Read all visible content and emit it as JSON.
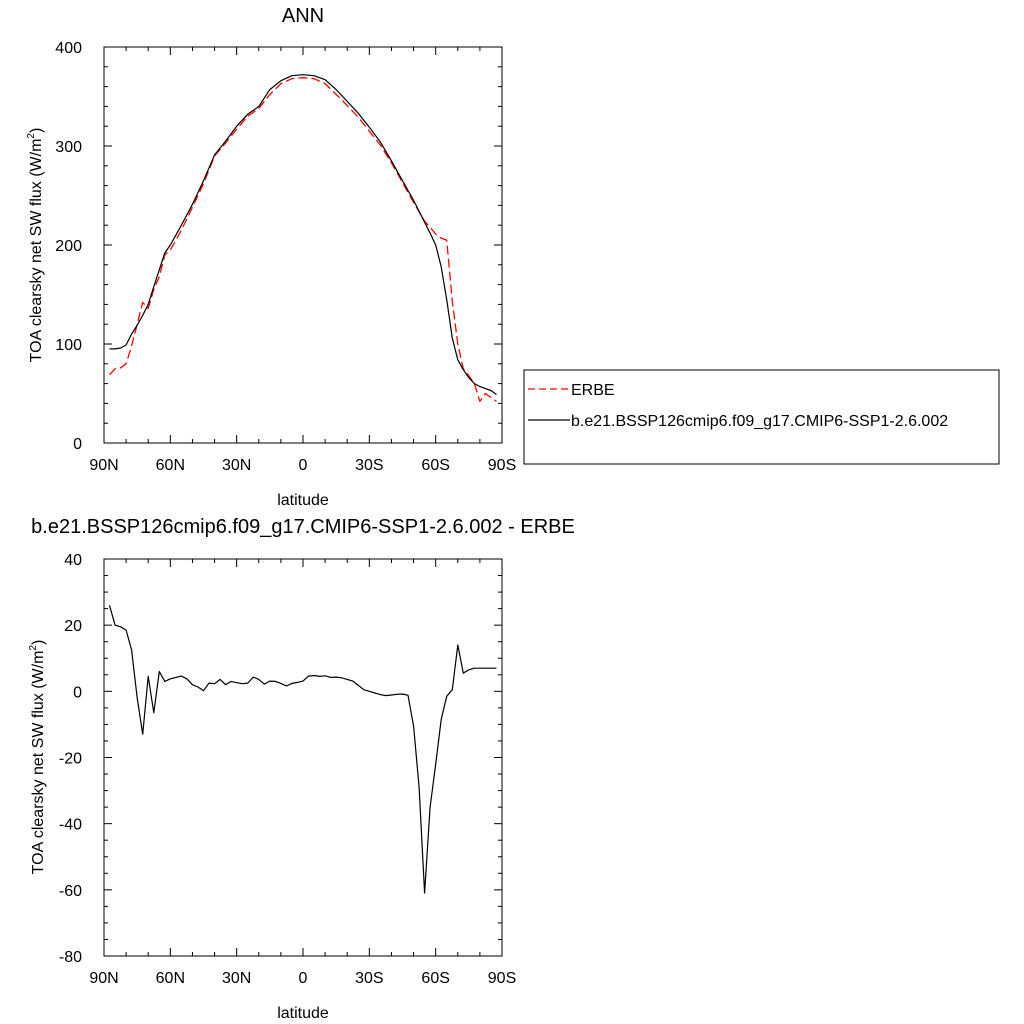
{
  "chart_data": [
    {
      "type": "line",
      "title": "ANN",
      "xlabel": "latitude",
      "ylabel": "TOA clearsky net SW flux (W/m",
      "ylabel_sup": "2",
      "ylabel_close": ")",
      "xlim": [
        90,
        -90
      ],
      "ylim": [
        0,
        400
      ],
      "x_ticks": [
        {
          "value": 90,
          "label": "90N"
        },
        {
          "value": 60,
          "label": "60N"
        },
        {
          "value": 30,
          "label": "30N"
        },
        {
          "value": 0,
          "label": "0"
        },
        {
          "value": -30,
          "label": "30S"
        },
        {
          "value": -60,
          "label": "60S"
        },
        {
          "value": -90,
          "label": "90S"
        }
      ],
      "y_ticks": [
        0,
        100,
        200,
        300,
        400
      ],
      "legend_position": "right",
      "series": [
        {
          "name": "ERBE",
          "style": "dashed",
          "color": "#ff0000",
          "x": [
            87.5,
            85,
            82.5,
            80,
            77.5,
            75,
            72.5,
            70,
            67.5,
            65,
            62.5,
            60,
            57.5,
            55,
            50,
            45,
            40,
            35,
            30,
            25,
            20,
            15,
            10,
            5,
            0,
            -5,
            -10,
            -15,
            -20,
            -25,
            -30,
            -35,
            -40,
            -45,
            -50,
            -55,
            -57.5,
            -60,
            -62.5,
            -65,
            -67.5,
            -70,
            -72.5,
            -75,
            -77.5,
            -80,
            -82.5,
            -85,
            -87.5
          ],
          "y": [
            69,
            75,
            76,
            80,
            98,
            120,
            142,
            136,
            155,
            168,
            190,
            195,
            205,
            215,
            238,
            262,
            290,
            303,
            317,
            330,
            338,
            352,
            363,
            368,
            369,
            368,
            363,
            352,
            341,
            329,
            315,
            301,
            283,
            263,
            243,
            224,
            218,
            211,
            207,
            205,
            143,
            100,
            75,
            68,
            60,
            42,
            50,
            46,
            42
          ]
        },
        {
          "name": "b.e21.BSSP126cmip6.f09_g17.CMIP6-SSP1-2.6.002",
          "style": "solid",
          "color": "#000000",
          "x": [
            87.5,
            85,
            82.5,
            80,
            77.5,
            75,
            72.5,
            70,
            67.5,
            65,
            62.5,
            60,
            57.5,
            55,
            50,
            45,
            40,
            35,
            30,
            25,
            20,
            15,
            10,
            5,
            0,
            -5,
            -10,
            -15,
            -20,
            -25,
            -30,
            -35,
            -40,
            -45,
            -50,
            -55,
            -57.5,
            -60,
            -62.5,
            -65,
            -67.5,
            -70,
            -72.5,
            -75,
            -77.5,
            -80,
            -82.5,
            -85,
            -87.5
          ],
          "y": [
            95,
            95,
            96,
            99,
            110,
            119,
            129,
            140,
            158,
            175,
            192,
            200,
            210,
            220,
            241,
            265,
            291,
            305,
            320,
            332,
            340,
            357,
            366,
            371,
            372,
            371,
            367,
            357,
            345,
            333,
            319,
            304,
            285,
            265,
            245,
            223,
            212,
            200,
            178,
            145,
            106,
            84,
            74,
            66,
            60,
            57,
            55,
            53,
            49
          ]
        }
      ]
    },
    {
      "type": "line",
      "title": "b.e21.BSSP126cmip6.f09_g17.CMIP6-SSP1-2.6.002 - ERBE",
      "xlabel": "latitude",
      "ylabel": "TOA clearsky net SW flux (W/m",
      "ylabel_sup": "2",
      "ylabel_close": ")",
      "xlim": [
        90,
        -90
      ],
      "ylim": [
        -80,
        40
      ],
      "x_ticks": [
        {
          "value": 90,
          "label": "90N"
        },
        {
          "value": 60,
          "label": "60N"
        },
        {
          "value": 30,
          "label": "30N"
        },
        {
          "value": 0,
          "label": "0"
        },
        {
          "value": -30,
          "label": "30S"
        },
        {
          "value": -60,
          "label": "60S"
        },
        {
          "value": -90,
          "label": "90S"
        }
      ],
      "y_ticks": [
        -80,
        -60,
        -40,
        -20,
        0,
        20,
        40
      ],
      "series": [
        {
          "style": "solid",
          "color": "#000000",
          "x": [
            87.5,
            85,
            82.5,
            80,
            77.5,
            75,
            72.5,
            70,
            67.5,
            65,
            62.5,
            60,
            57.5,
            55,
            52.5,
            50,
            47.5,
            45,
            42.5,
            40,
            37.5,
            35,
            32.5,
            30,
            27.5,
            25,
            22.5,
            20,
            17.5,
            15,
            12.5,
            10,
            7.5,
            5,
            2.5,
            0,
            -2.5,
            -5,
            -7.5,
            -10,
            -12.5,
            -15,
            -17.5,
            -20,
            -22.5,
            -25,
            -27.5,
            -30,
            -32.5,
            -35,
            -37.5,
            -40,
            -42.5,
            -45,
            -47.5,
            -50,
            -52.5,
            -55,
            -57.5,
            -60,
            -62.5,
            -65,
            -67.5,
            -70,
            -72.5,
            -75,
            -77.5,
            -80,
            -82.5,
            -85,
            -87.5
          ],
          "y": [
            26,
            20,
            19.5,
            18.5,
            12.5,
            -2,
            -13,
            4.5,
            -6.5,
            6,
            3,
            3.8,
            4.2,
            4.6,
            3.8,
            2,
            1.3,
            0.2,
            2.5,
            2.3,
            3.6,
            2,
            3,
            2.6,
            2.3,
            2.5,
            4.3,
            3.6,
            2.2,
            3.1,
            3,
            2.4,
            1.6,
            2.4,
            2.7,
            3.1,
            4.6,
            4.8,
            4.5,
            4.7,
            4.2,
            4.3,
            4.1,
            3.6,
            3.1,
            1.8,
            0.5,
            0,
            -0.5,
            -1,
            -1.3,
            -1.1,
            -0.9,
            -0.8,
            -1.2,
            -10.5,
            -29,
            -61,
            -35,
            -22,
            -8.5,
            -1.5,
            0.5,
            14,
            5.5,
            6.5,
            7,
            7,
            7,
            7,
            7
          ]
        }
      ]
    }
  ],
  "legend": {
    "items": [
      {
        "label": "ERBE"
      },
      {
        "label": "b.e21.BSSP126cmip6.f09_g17.CMIP6-SSP1-2.6.002"
      }
    ]
  }
}
